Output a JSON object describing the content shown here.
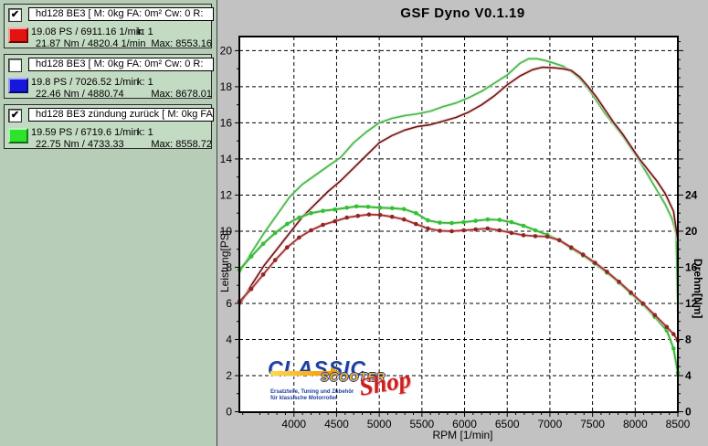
{
  "colors": {
    "panel_bg": "#b7cdb7",
    "legend_box_bg": "#c3dac3",
    "chart_bg": "#c2c2c2",
    "plot_bg": "#ffffff",
    "run1_swatch": "#e51212",
    "run2_swatch": "#1616dd",
    "run3_swatch": "#2ee32e"
  },
  "legend": [
    {
      "check": "✔",
      "color": "#e51212",
      "title": "hd128 BE3 [ M: 0kg  FA: 0m²  Cw: 0  R:",
      "power_line": "19.08 PS / 6911.16 1/min",
      "k_label": "k: 1",
      "torque_line": "21.87 Nm / 4820.4 1/min",
      "max_label": "Max: 8553.16"
    },
    {
      "check": "",
      "color": "#1616dd",
      "title": "hd128 BE3 [ M: 0kg  FA: 0m²  Cw: 0  R:",
      "power_line": "19.8 PS / 7026.52 1/min",
      "k_label": "k: 1",
      "torque_line": "22.46 Nm / 4880.74",
      "max_label": "Max: 8678.01"
    },
    {
      "check": "✔",
      "color": "#2ee32e",
      "title": "hd128 BE3 zündung zurück [ M: 0kg  FA:",
      "power_line": "19.59 PS / 6719.6 1/min",
      "k_label": "k: 1",
      "torque_line": "22.75 Nm / 4733.33",
      "max_label": "Max: 8558.72"
    }
  ],
  "logo": {
    "line1": "CLASSIC",
    "line2": "SCOOTER",
    "line3": "Shop",
    "tagline1": "Ersatzteile, Tuning und Zubehör",
    "tagline2": "für klassische Motorroller"
  },
  "chart_data": {
    "type": "line",
    "title": "GSF Dyno V0.1.19",
    "xlabel": "RPM [1/min]",
    "ylabel_left": "Leistung[PS]",
    "ylabel_right": "Drehm[Nm]",
    "x_range": [
      3360,
      8500
    ],
    "x_tick_labels": [
      4000,
      4500,
      5000,
      5500,
      6000,
      6500,
      7000,
      7500,
      8000,
      8500
    ],
    "x_minor_step": 100,
    "y_left_range": [
      0,
      20.78
    ],
    "y_left_labels": [
      0,
      2,
      4,
      6,
      8,
      10,
      12,
      14,
      16,
      18,
      20
    ],
    "y_left_minor_step": 1,
    "y_right_range": [
      0,
      41.56
    ],
    "y_right_labels": [
      0,
      4,
      8,
      12,
      16,
      20,
      24
    ],
    "y_right_major_step": 4,
    "y_right_minor_step": 1,
    "grid": {
      "dashed": true,
      "x_step": 500,
      "y_step_left": 2
    },
    "legend_position": "outside-left",
    "series": [
      {
        "name": "run3_green_power_PS",
        "axis": "left",
        "unit": "PS",
        "color": "#45b545",
        "halo": "#cdeccd",
        "width": 1.6,
        "marker": false,
        "points": [
          [
            3360,
            7.7
          ],
          [
            3500,
            8.8
          ],
          [
            3650,
            9.9
          ],
          [
            3800,
            10.9
          ],
          [
            3950,
            11.9
          ],
          [
            4100,
            12.6
          ],
          [
            4250,
            13.1
          ],
          [
            4400,
            13.6
          ],
          [
            4550,
            14.1
          ],
          [
            4700,
            14.9
          ],
          [
            4850,
            15.5
          ],
          [
            5000,
            16.0
          ],
          [
            5150,
            16.25
          ],
          [
            5300,
            16.4
          ],
          [
            5450,
            16.5
          ],
          [
            5600,
            16.65
          ],
          [
            5750,
            16.9
          ],
          [
            5900,
            17.1
          ],
          [
            6050,
            17.4
          ],
          [
            6200,
            17.75
          ],
          [
            6350,
            18.2
          ],
          [
            6500,
            18.65
          ],
          [
            6650,
            19.3
          ],
          [
            6750,
            19.55
          ],
          [
            6850,
            19.55
          ],
          [
            6950,
            19.45
          ],
          [
            7050,
            19.3
          ],
          [
            7150,
            19.15
          ],
          [
            7250,
            18.85
          ],
          [
            7350,
            18.45
          ],
          [
            7450,
            17.9
          ],
          [
            7550,
            17.2
          ],
          [
            7650,
            16.5
          ],
          [
            7750,
            15.9
          ],
          [
            7850,
            15.3
          ],
          [
            7950,
            14.6
          ],
          [
            8050,
            13.9
          ],
          [
            8150,
            13.1
          ],
          [
            8250,
            12.3
          ],
          [
            8350,
            11.5
          ],
          [
            8430,
            10.7
          ],
          [
            8480,
            9.9
          ],
          [
            8500,
            5.6
          ]
        ]
      },
      {
        "name": "run1_red_power_PS",
        "axis": "left",
        "unit": "PS",
        "color": "#6b1515",
        "halo": "#eecaca",
        "width": 1.6,
        "marker": false,
        "points": [
          [
            3360,
            5.9
          ],
          [
            3500,
            7.0
          ],
          [
            3650,
            8.1
          ],
          [
            3800,
            9.0
          ],
          [
            3950,
            9.9
          ],
          [
            4100,
            10.8
          ],
          [
            4250,
            11.5
          ],
          [
            4400,
            12.2
          ],
          [
            4550,
            12.8
          ],
          [
            4700,
            13.5
          ],
          [
            4850,
            14.2
          ],
          [
            5000,
            14.9
          ],
          [
            5150,
            15.3
          ],
          [
            5300,
            15.6
          ],
          [
            5450,
            15.8
          ],
          [
            5600,
            15.9
          ],
          [
            5750,
            16.1
          ],
          [
            5900,
            16.3
          ],
          [
            6050,
            16.6
          ],
          [
            6200,
            17.0
          ],
          [
            6350,
            17.5
          ],
          [
            6500,
            18.1
          ],
          [
            6650,
            18.6
          ],
          [
            6800,
            18.95
          ],
          [
            6911,
            19.08
          ],
          [
            7050,
            19.05
          ],
          [
            7150,
            19.0
          ],
          [
            7250,
            18.9
          ],
          [
            7350,
            18.55
          ],
          [
            7450,
            18.0
          ],
          [
            7550,
            17.4
          ],
          [
            7650,
            16.7
          ],
          [
            7750,
            16.0
          ],
          [
            7850,
            15.4
          ],
          [
            7950,
            14.7
          ],
          [
            8050,
            14.0
          ],
          [
            8150,
            13.4
          ],
          [
            8250,
            12.8
          ],
          [
            8350,
            12.1
          ],
          [
            8450,
            11.1
          ],
          [
            8500,
            9.5
          ]
        ]
      },
      {
        "name": "run3_green_torque_Nm",
        "axis": "right",
        "unit": "Nm",
        "color": "#3fae3f",
        "halo": "#b8efb8",
        "width": 1.8,
        "marker": true,
        "marker_color": "#2fc42f",
        "points": [
          [
            3360,
            15.7
          ],
          [
            3500,
            17.2
          ],
          [
            3640,
            18.6
          ],
          [
            3780,
            19.8
          ],
          [
            3920,
            20.8
          ],
          [
            4060,
            21.5
          ],
          [
            4200,
            22.0
          ],
          [
            4340,
            22.25
          ],
          [
            4480,
            22.4
          ],
          [
            4620,
            22.6
          ],
          [
            4733,
            22.75
          ],
          [
            4870,
            22.7
          ],
          [
            5010,
            22.6
          ],
          [
            5150,
            22.55
          ],
          [
            5290,
            22.45
          ],
          [
            5430,
            22.0
          ],
          [
            5570,
            21.2
          ],
          [
            5710,
            20.95
          ],
          [
            5850,
            20.9
          ],
          [
            5990,
            21.0
          ],
          [
            6130,
            21.15
          ],
          [
            6270,
            21.3
          ],
          [
            6410,
            21.25
          ],
          [
            6550,
            21.0
          ],
          [
            6690,
            20.6
          ],
          [
            6830,
            20.1
          ],
          [
            6970,
            19.6
          ],
          [
            7110,
            19.0
          ],
          [
            7250,
            18.1
          ],
          [
            7390,
            17.3
          ],
          [
            7530,
            16.4
          ],
          [
            7670,
            15.4
          ],
          [
            7810,
            14.3
          ],
          [
            7950,
            13.1
          ],
          [
            8090,
            11.9
          ],
          [
            8230,
            10.5
          ],
          [
            8370,
            9.0
          ],
          [
            8450,
            7.0
          ],
          [
            8500,
            4.3
          ]
        ]
      },
      {
        "name": "run1_red_torque_Nm",
        "axis": "right",
        "unit": "Nm",
        "color": "#a03535",
        "halo": "#f3c9c9",
        "width": 1.8,
        "marker": true,
        "marker_color": "#8f2525",
        "points": [
          [
            3360,
            12.2
          ],
          [
            3500,
            13.6
          ],
          [
            3640,
            15.2
          ],
          [
            3780,
            16.8
          ],
          [
            3920,
            18.2
          ],
          [
            4060,
            19.3
          ],
          [
            4200,
            20.1
          ],
          [
            4340,
            20.7
          ],
          [
            4480,
            21.1
          ],
          [
            4620,
            21.5
          ],
          [
            4750,
            21.7
          ],
          [
            4880,
            21.85
          ],
          [
            5010,
            21.8
          ],
          [
            5150,
            21.6
          ],
          [
            5290,
            21.3
          ],
          [
            5430,
            20.8
          ],
          [
            5570,
            20.3
          ],
          [
            5710,
            20.05
          ],
          [
            5850,
            20.0
          ],
          [
            5990,
            20.1
          ],
          [
            6130,
            20.2
          ],
          [
            6270,
            20.3
          ],
          [
            6410,
            20.1
          ],
          [
            6550,
            19.8
          ],
          [
            6690,
            19.55
          ],
          [
            6830,
            19.45
          ],
          [
            6970,
            19.4
          ],
          [
            7110,
            19.0
          ],
          [
            7250,
            18.2
          ],
          [
            7390,
            17.4
          ],
          [
            7530,
            16.5
          ],
          [
            7670,
            15.5
          ],
          [
            7810,
            14.4
          ],
          [
            7950,
            13.2
          ],
          [
            8090,
            12.0
          ],
          [
            8230,
            10.7
          ],
          [
            8370,
            9.4
          ],
          [
            8450,
            8.6
          ],
          [
            8500,
            7.9
          ]
        ]
      }
    ]
  }
}
